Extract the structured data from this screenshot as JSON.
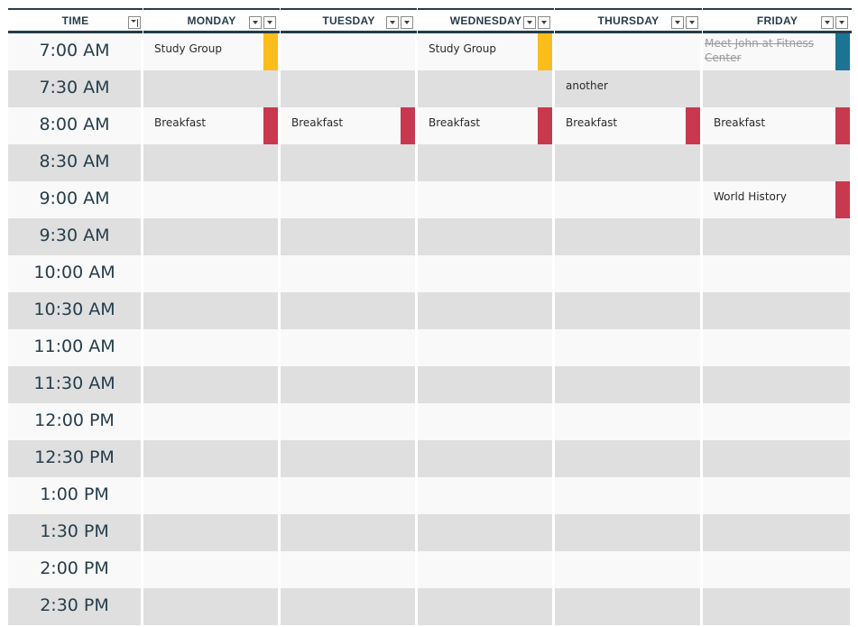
{
  "columns": [
    {
      "key": "time",
      "label": "TIME",
      "filter": "sort"
    },
    {
      "key": "mon",
      "label": "MONDAY",
      "filter": "double"
    },
    {
      "key": "tue",
      "label": "TUESDAY",
      "filter": "double"
    },
    {
      "key": "wed",
      "label": "WEDNESDAY",
      "filter": "double"
    },
    {
      "key": "thu",
      "label": "THURSDAY",
      "filter": "double"
    },
    {
      "key": "fri",
      "label": "FRIDAY",
      "filter": "double"
    }
  ],
  "times": [
    "7:00 AM",
    "7:30 AM",
    "8:00 AM",
    "8:30 AM",
    "9:00 AM",
    "9:30 AM",
    "10:00 AM",
    "10:30 AM",
    "11:00 AM",
    "11:30 AM",
    "12:00 PM",
    "12:30 PM",
    "1:00 PM",
    "1:30 PM",
    "2:00 PM",
    "2:30 PM"
  ],
  "colors": {
    "header_text": "#263d4a",
    "row_light": "#f9f9f9",
    "row_dark": "#dfdfdf",
    "yellow": "#fbbd1b",
    "red": "#c8394f",
    "teal": "#1c7393"
  },
  "events": [
    {
      "day": "mon",
      "row": 0,
      "text": "Study Group",
      "marker": "yellow"
    },
    {
      "day": "wed",
      "row": 0,
      "text": "Study Group",
      "marker": "yellow"
    },
    {
      "day": "fri",
      "row": 0,
      "text": "Meet John at Fitness Center",
      "marker": "teal",
      "done": true
    },
    {
      "day": "thu",
      "row": 1,
      "text": "another",
      "marker": null
    },
    {
      "day": "mon",
      "row": 2,
      "text": "Breakfast",
      "marker": "red"
    },
    {
      "day": "tue",
      "row": 2,
      "text": "Breakfast",
      "marker": "red"
    },
    {
      "day": "wed",
      "row": 2,
      "text": "Breakfast",
      "marker": "red"
    },
    {
      "day": "thu",
      "row": 2,
      "text": "Breakfast",
      "marker": "red"
    },
    {
      "day": "fri",
      "row": 2,
      "text": "Breakfast",
      "marker": "red"
    },
    {
      "day": "fri",
      "row": 4,
      "text": "World History",
      "marker": "red"
    }
  ]
}
